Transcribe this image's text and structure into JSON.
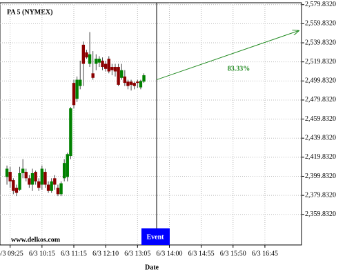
{
  "chart_data": {
    "type": "candlestick",
    "title": "PA 5 (NYMEX)",
    "watermark": "www.delkos.com",
    "x_label": "Date",
    "up_color": "#008000",
    "down_color": "#8b0000",
    "grid": true,
    "open": [
      2399.1,
      2404.5,
      2395.8,
      2387.8,
      2385.8,
      2403.1,
      2404.5,
      2397.8,
      2391.1,
      2404.5,
      2394.5,
      2391.1,
      2404.5,
      2391.1,
      2384.5,
      2397.8,
      2387.8,
      2381.1,
      2397.8,
      2399.1,
      2421.1,
      2497.8,
      2481.1,
      2494.5,
      2537.8,
      2529.8,
      2517.8,
      2507.8,
      2517.8,
      2519.1,
      2521.1,
      2517.8,
      2523.1,
      2514.5,
      2514.5,
      2514.5,
      2503.1,
      2504.5,
      2499.1,
      2499.1,
      2497.8,
      2499.1,
      2493.1,
      2499.1
    ],
    "high": [
      2411.1,
      2409.8,
      2397.8,
      2391.1,
      2409.8,
      2417.8,
      2407.8,
      2401.1,
      2407.8,
      2405.8,
      2397.8,
      2411.1,
      2407.8,
      2394.5,
      2397.8,
      2401.1,
      2391.1,
      2394.5,
      2417.8,
      2424.5,
      2472.5,
      2501.1,
      2504.5,
      2521.1,
      2541.1,
      2532.5,
      2551.1,
      2531.1,
      2527.8,
      2525.8,
      2524.5,
      2521.1,
      2525.8,
      2517.8,
      2517.8,
      2517.8,
      2517.8,
      2511.1,
      2501.1,
      2501.1,
      2499.1,
      2501.1,
      2501.1,
      2507.8
    ],
    "low": [
      2391.1,
      2387.8,
      2381.1,
      2379.1,
      2384.5,
      2397.8,
      2394.5,
      2387.8,
      2384.5,
      2391.1,
      2384.5,
      2385.8,
      2387.8,
      2382.5,
      2382.5,
      2385.8,
      2379.1,
      2379.1,
      2394.5,
      2394.5,
      2417.8,
      2471.1,
      2477.8,
      2491.1,
      2494.5,
      2523.1,
      2514.5,
      2501.1,
      2511.1,
      2514.5,
      2511.1,
      2509.8,
      2507.8,
      2505.8,
      2504.5,
      2494.5,
      2501.1,
      2494.5,
      2491.1,
      2489.8,
      2491.1,
      2492.5,
      2491.1,
      2497.8
    ],
    "close": [
      2407.8,
      2394.5,
      2384.5,
      2382.5,
      2403.1,
      2407.8,
      2397.8,
      2391.1,
      2403.1,
      2394.5,
      2387.8,
      2407.8,
      2391.1,
      2384.5,
      2394.5,
      2391.1,
      2381.1,
      2392.5,
      2413.8,
      2423.1,
      2471.1,
      2474.5,
      2501.1,
      2501.1,
      2517.8,
      2524.5,
      2527.8,
      2503.1,
      2523.1,
      2523.1,
      2514.5,
      2512.5,
      2509.8,
      2511.1,
      2509.8,
      2495.8,
      2511.1,
      2497.8,
      2494.5,
      2495.8,
      2494.5,
      2497.8,
      2499.8,
      2505.8
    ],
    "xlim": [
      -1.1,
      92.5
    ],
    "xticks": [
      {
        "value": 1,
        "label": "6/3 09:25"
      },
      {
        "value": 11,
        "label": "6/3 10:15"
      },
      {
        "value": 21,
        "label": "6/3 11:15"
      },
      {
        "value": 31,
        "label": "6/3 12:10"
      },
      {
        "value": 41,
        "label": "6/3 13:05"
      },
      {
        "value": 51,
        "label": "6/3 14:00"
      },
      {
        "value": 61,
        "label": "6/3 14:55"
      },
      {
        "value": 71,
        "label": "6/3 15:50"
      },
      {
        "value": 81,
        "label": "6/3 16:45"
      }
    ],
    "ylim": [
      2327.832,
      2581.832
    ],
    "yticks": [
      {
        "value": 2359.832,
        "label": "2,359.8320"
      },
      {
        "value": 2379.832,
        "label": "2,379.8320"
      },
      {
        "value": 2399.832,
        "label": "2,399.8320"
      },
      {
        "value": 2419.832,
        "label": "2,419.8320"
      },
      {
        "value": 2439.832,
        "label": "2,439.8320"
      },
      {
        "value": 2459.832,
        "label": "2,459.8320"
      },
      {
        "value": 2479.832,
        "label": "2,479.8320"
      },
      {
        "value": 2499.832,
        "label": "2,499.8320"
      },
      {
        "value": 2519.832,
        "label": "2,519.8320"
      },
      {
        "value": 2539.832,
        "label": "2,539.8320"
      },
      {
        "value": 2559.832,
        "label": "2,559.8320"
      },
      {
        "value": 2579.832,
        "label": "2,579.8320"
      }
    ],
    "event": {
      "label": "Event",
      "x": 47
    },
    "projection": {
      "label": "83.33%",
      "color": "#228b22",
      "x": [
        47,
        91.6
      ],
      "y": [
        2501.1,
        2552.5
      ]
    }
  }
}
